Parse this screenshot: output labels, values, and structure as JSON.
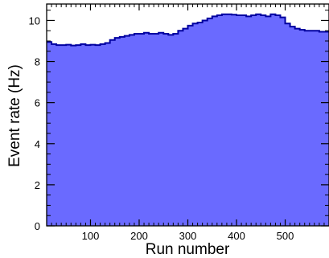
{
  "chart_data": {
    "type": "area",
    "xlabel": "Run number",
    "ylabel": "Event rate (Hz)",
    "xlim": [
      10,
      590
    ],
    "ylim": [
      0,
      10.8
    ],
    "x_ticks": [
      100,
      200,
      300,
      400,
      500
    ],
    "y_ticks": [
      0,
      2,
      4,
      6,
      8,
      10
    ],
    "x_minor_step": 10,
    "y_minor_step": 0.5,
    "fill_color": "#6a6aff",
    "line_color": "#0000a0",
    "series": [
      {
        "x": [
          10,
          20,
          30,
          40,
          50,
          60,
          70,
          80,
          90,
          100,
          110,
          120,
          130,
          140,
          150,
          160,
          170,
          180,
          190,
          200,
          210,
          220,
          230,
          240,
          250,
          260,
          270,
          280,
          290,
          300,
          310,
          320,
          330,
          340,
          350,
          360,
          370,
          380,
          390,
          400,
          410,
          420,
          430,
          440,
          450,
          460,
          470,
          480,
          490,
          500,
          510,
          520,
          530,
          540,
          550,
          560,
          570,
          580,
          590
        ],
        "values": [
          8.95,
          8.85,
          8.8,
          8.8,
          8.82,
          8.78,
          8.8,
          8.85,
          8.8,
          8.82,
          8.8,
          8.85,
          8.9,
          9.05,
          9.15,
          9.2,
          9.25,
          9.3,
          9.35,
          9.35,
          9.4,
          9.35,
          9.35,
          9.4,
          9.35,
          9.3,
          9.35,
          9.5,
          9.6,
          9.75,
          9.85,
          9.9,
          10.0,
          10.1,
          10.2,
          10.25,
          10.3,
          10.3,
          10.28,
          10.25,
          10.25,
          10.2,
          10.25,
          10.3,
          10.25,
          10.2,
          10.3,
          10.25,
          10.15,
          9.85,
          9.7,
          9.6,
          9.55,
          9.5,
          9.5,
          9.5,
          9.45,
          9.45,
          9.45
        ]
      }
    ]
  }
}
